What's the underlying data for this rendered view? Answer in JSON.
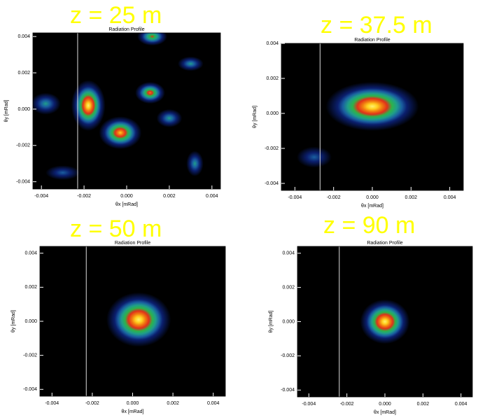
{
  "chart_data": [
    {
      "type": "heatmap",
      "title": "Radiation Profile",
      "annotation": "z = 25 m",
      "xlabel": "θx [mRad]",
      "ylabel": "θy [mRad]",
      "xlim": [
        -0.0044,
        0.0044
      ],
      "ylim": [
        -0.0044,
        0.0042
      ],
      "xticks": [
        -0.004,
        -0.002,
        {
          "value": 0,
          "label": "0.000"
        },
        0.002,
        0.004
      ],
      "yticks": [
        -0.004,
        -0.002,
        {
          "value": 0,
          "label": "0.000"
        },
        0.002,
        0.004
      ],
      "vline": -0.0023,
      "colors": [
        "#0b1f6e",
        "#1a5fa0",
        "#1f9e8a",
        "#2db34a",
        "#e0301a",
        "#f07a10",
        "#ffd020",
        "#fff070"
      ],
      "blobs": [
        {
          "x": -0.0018,
          "y": 0.0002,
          "rx": 0.0008,
          "ry": 0.0014,
          "peak": 1
        },
        {
          "x": -0.0003,
          "y": -0.0013,
          "rx": 0.001,
          "ry": 0.0009,
          "peak": 0.85
        },
        {
          "x": 0.0011,
          "y": 0.0009,
          "rx": 0.0007,
          "ry": 0.0006,
          "peak": 0.8
        },
        {
          "x": 0.0012,
          "y": 0.004,
          "rx": 0.0007,
          "ry": 0.0005,
          "peak": 0.65
        },
        {
          "x": 0.0032,
          "y": -0.003,
          "rx": 0.0004,
          "ry": 0.0007,
          "peak": 0.4
        },
        {
          "x": 0.003,
          "y": 0.0025,
          "rx": 0.0006,
          "ry": 0.0004,
          "peak": 0.4
        },
        {
          "x": -0.0038,
          "y": 0.0003,
          "rx": 0.0007,
          "ry": 0.0006,
          "peak": 0.4
        },
        {
          "x": 0.002,
          "y": -0.0005,
          "rx": 0.0006,
          "ry": 0.0005,
          "peak": 0.35
        },
        {
          "x": -0.003,
          "y": -0.0035,
          "rx": 0.0008,
          "ry": 0.0004,
          "peak": 0.3
        }
      ]
    },
    {
      "type": "heatmap",
      "title": "Radiation Profile",
      "annotation": "z = 37.5 m",
      "xlabel": "θx [mRad]",
      "ylabel": "θy [mRad]",
      "xlim": [
        -0.0047,
        0.0047
      ],
      "ylim": [
        -0.0044,
        0.004
      ],
      "xticks": [
        -0.004,
        -0.002,
        {
          "value": 0,
          "label": "0.000"
        },
        0.002,
        0.004
      ],
      "yticks": [
        -0.004,
        -0.002,
        {
          "value": 0,
          "label": "0.000"
        },
        0.002,
        0.004
      ],
      "vline": -0.0027,
      "colors": [
        "#0b1f6e",
        "#1a5fa0",
        "#1f9e8a",
        "#2db34a",
        "#e0301a",
        "#f07a10",
        "#ffd020",
        "#fff070"
      ],
      "blobs": [
        {
          "x": 0,
          "y": 0.0004,
          "rx": 0.0024,
          "ry": 0.0014,
          "peak": 1
        },
        {
          "x": -0.003,
          "y": -0.0025,
          "rx": 0.0009,
          "ry": 0.0006,
          "peak": 0.2
        }
      ]
    },
    {
      "type": "heatmap",
      "title": "Radiation Profile",
      "annotation": "z = 50 m",
      "xlabel": "θx [mRad]",
      "ylabel": "θy [mRad]",
      "xlim": [
        -0.0046,
        0.0046
      ],
      "ylim": [
        -0.0044,
        0.0044
      ],
      "xticks": [
        -0.004,
        -0.002,
        {
          "value": 0,
          "label": "0.000"
        },
        0.002,
        0.004
      ],
      "yticks": [
        -0.004,
        -0.002,
        {
          "value": 0,
          "label": "0.000"
        },
        0.002,
        0.004
      ],
      "vline": -0.0023,
      "colors": [
        "#0b1f6e",
        "#1a5fa0",
        "#1f9e8a",
        "#2db34a",
        "#e0301a",
        "#f07a10",
        "#ffd020",
        "#fff070"
      ],
      "blobs": [
        {
          "x": 0.0003,
          "y": 0.0001,
          "rx": 0.0016,
          "ry": 0.0016,
          "peak": 1
        }
      ]
    },
    {
      "type": "heatmap",
      "title": "Radiation Profile",
      "annotation": "z = 90 m",
      "xlabel": "θx [mRad]",
      "ylabel": "θy [mRad]",
      "xlim": [
        -0.0046,
        0.0046
      ],
      "ylim": [
        -0.0044,
        0.0044
      ],
      "xticks": [
        -0.004,
        -0.002,
        {
          "value": 0,
          "label": "0.000"
        },
        0.002,
        0.004
      ],
      "yticks": [
        -0.004,
        -0.002,
        {
          "value": 0,
          "label": "0.000"
        },
        0.002,
        0.004
      ],
      "vline": -0.0024,
      "colors": [
        "#0b1f6e",
        "#1a5fa0",
        "#1f9e8a",
        "#2db34a",
        "#e0301a",
        "#f07a10",
        "#ffd020",
        "#fff070"
      ],
      "blobs": [
        {
          "x": 0,
          "y": 0,
          "rx": 0.0013,
          "ry": 0.0013,
          "peak": 1
        }
      ]
    }
  ]
}
